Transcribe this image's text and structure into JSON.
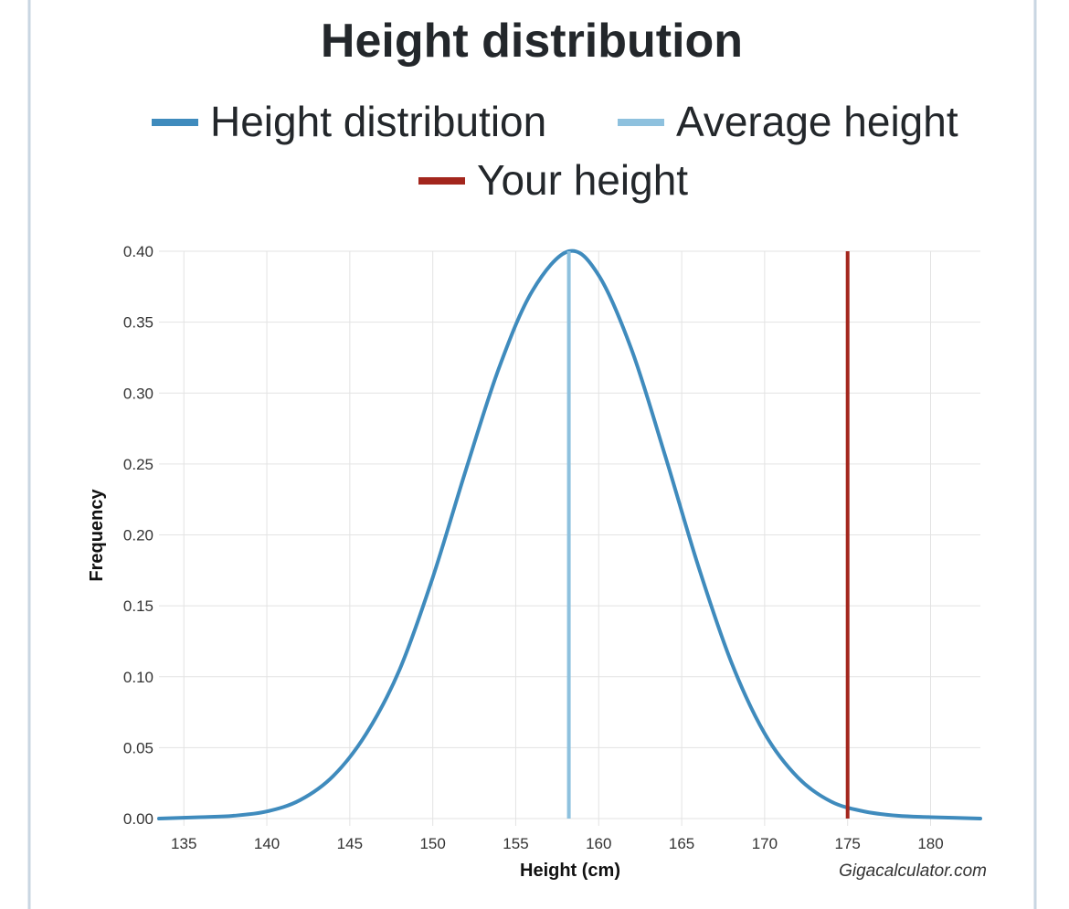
{
  "chart_data": {
    "type": "line",
    "title": "Height distribution",
    "xlabel": "Height (cm)",
    "ylabel": "Frequency",
    "xlim": [
      133.5,
      183
    ],
    "ylim": [
      0,
      0.4
    ],
    "x_ticks": [
      "135",
      "140",
      "145",
      "150",
      "155",
      "160",
      "165",
      "170",
      "175",
      "180"
    ],
    "y_ticks": [
      "0.00",
      "0.05",
      "0.10",
      "0.15",
      "0.20",
      "0.25",
      "0.30",
      "0.35",
      "0.40"
    ],
    "grid": true,
    "legend_position": "top",
    "series": [
      {
        "name": "Height distribution",
        "color": "#3f8bbd",
        "x": [
          133.5,
          136,
          138,
          140,
          142,
          144,
          146,
          148,
          150,
          152,
          154,
          156,
          158.2,
          160,
          162,
          164,
          166,
          168,
          170,
          172,
          174,
          176,
          178,
          180,
          183
        ],
        "y": [
          0.0,
          0.001,
          0.002,
          0.005,
          0.013,
          0.03,
          0.06,
          0.105,
          0.17,
          0.246,
          0.318,
          0.372,
          0.4,
          0.383,
          0.33,
          0.256,
          0.178,
          0.11,
          0.06,
          0.029,
          0.012,
          0.005,
          0.002,
          0.001,
          0.0
        ]
      },
      {
        "name": "Average height",
        "color": "#8ec1de",
        "x": [
          158.2,
          158.2
        ],
        "y": [
          0,
          0.4
        ]
      },
      {
        "name": "Your height",
        "color": "#a3261d",
        "x": [
          175,
          175
        ],
        "y": [
          0,
          0.4
        ]
      }
    ],
    "credit": "Gigacalculator.com"
  }
}
